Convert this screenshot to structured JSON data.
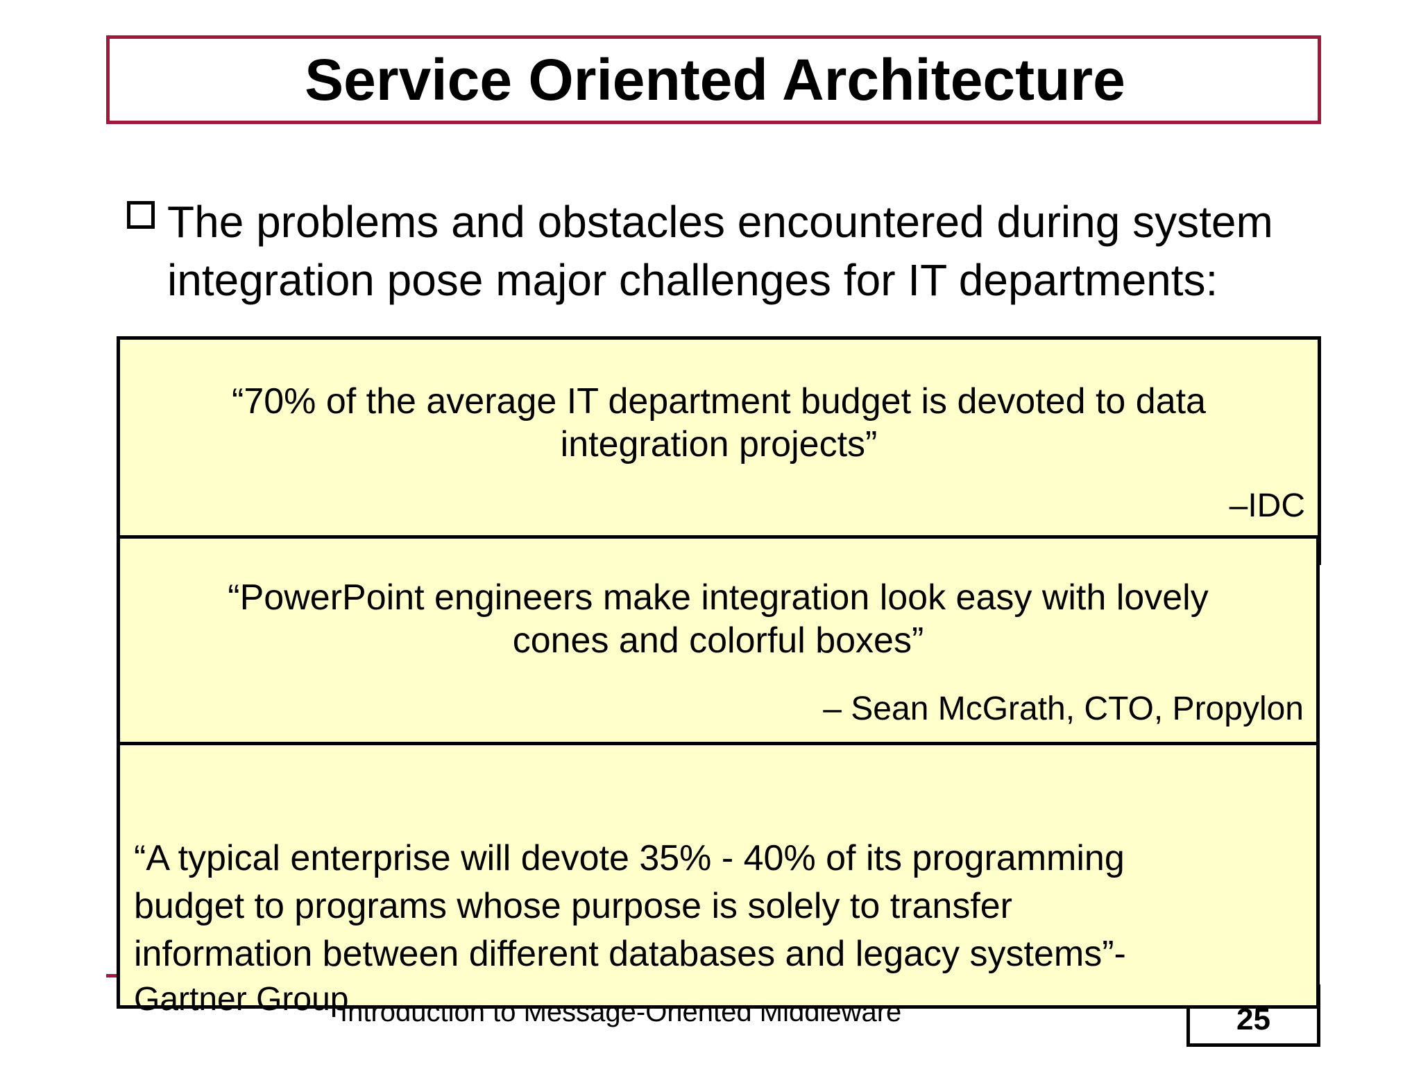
{
  "slide": {
    "title": "Service Oriented Architecture",
    "bullet": "The problems and obstacles encountered during system\nintegration pose major challenges for IT departments:"
  },
  "quotes": [
    {
      "text": "“70% of the average IT department budget is devoted to data\nintegration projects”",
      "attribution": "–IDC"
    },
    {
      "text": "“PowerPoint engineers make integration look easy with lovely\ncones and colorful boxes”",
      "attribution": "– Sean McGrath, CTO, Propylon"
    },
    {
      "text": "“A typical enterprise will devote 35% - 40% of its programming\nbudget to programs whose purpose is solely to transfer\ninformation between different databases and legacy systems”-",
      "attribution": "Gartner Group"
    }
  ],
  "footer": {
    "text": "Introduction to Message-Oriented Middleware",
    "page_number": "25"
  },
  "colors": {
    "accent": "#a0183c",
    "quote_background": "#ffffcc"
  }
}
